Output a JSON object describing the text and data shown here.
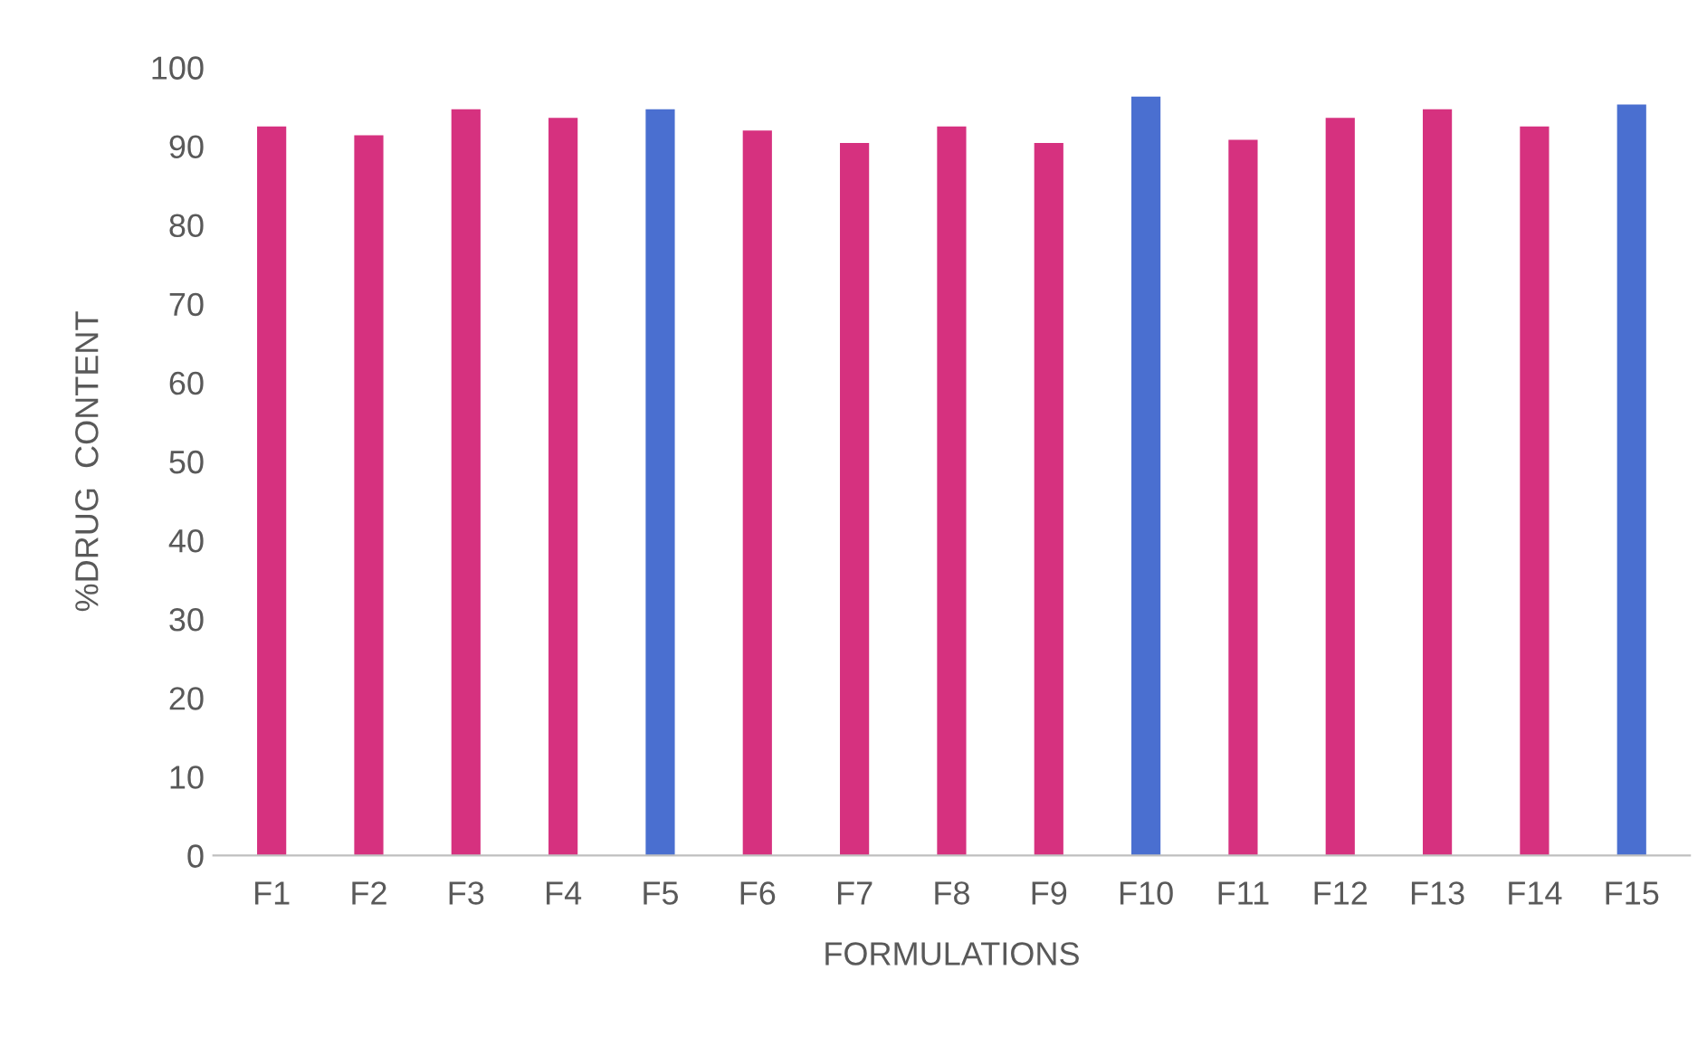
{
  "chart_data": {
    "type": "bar",
    "xlabel": "FORMULATIONS",
    "ylabel": "%DRUG  CONTENT",
    "categories": [
      "F1",
      "F2",
      "F3",
      "F4",
      "F5",
      "F6",
      "F7",
      "F8",
      "F9",
      "F10",
      "F11",
      "F12",
      "F13",
      "F14",
      "F15"
    ],
    "values": [
      92.5,
      91.4,
      94.7,
      93.6,
      94.7,
      92.0,
      90.4,
      92.5,
      90.4,
      96.3,
      90.8,
      93.6,
      94.7,
      92.5,
      95.3
    ],
    "colors": [
      "#d6317f",
      "#d6317f",
      "#d6317f",
      "#d6317f",
      "#4a6fd0",
      "#d6317f",
      "#d6317f",
      "#d6317f",
      "#d6317f",
      "#4a6fd0",
      "#d6317f",
      "#d6317f",
      "#d6317f",
      "#d6317f",
      "#4a6fd0"
    ],
    "ylim": [
      0,
      100
    ],
    "yticks": [
      0,
      10,
      20,
      30,
      40,
      50,
      60,
      70,
      80,
      90,
      100
    ],
    "grid": false,
    "legend": false
  }
}
